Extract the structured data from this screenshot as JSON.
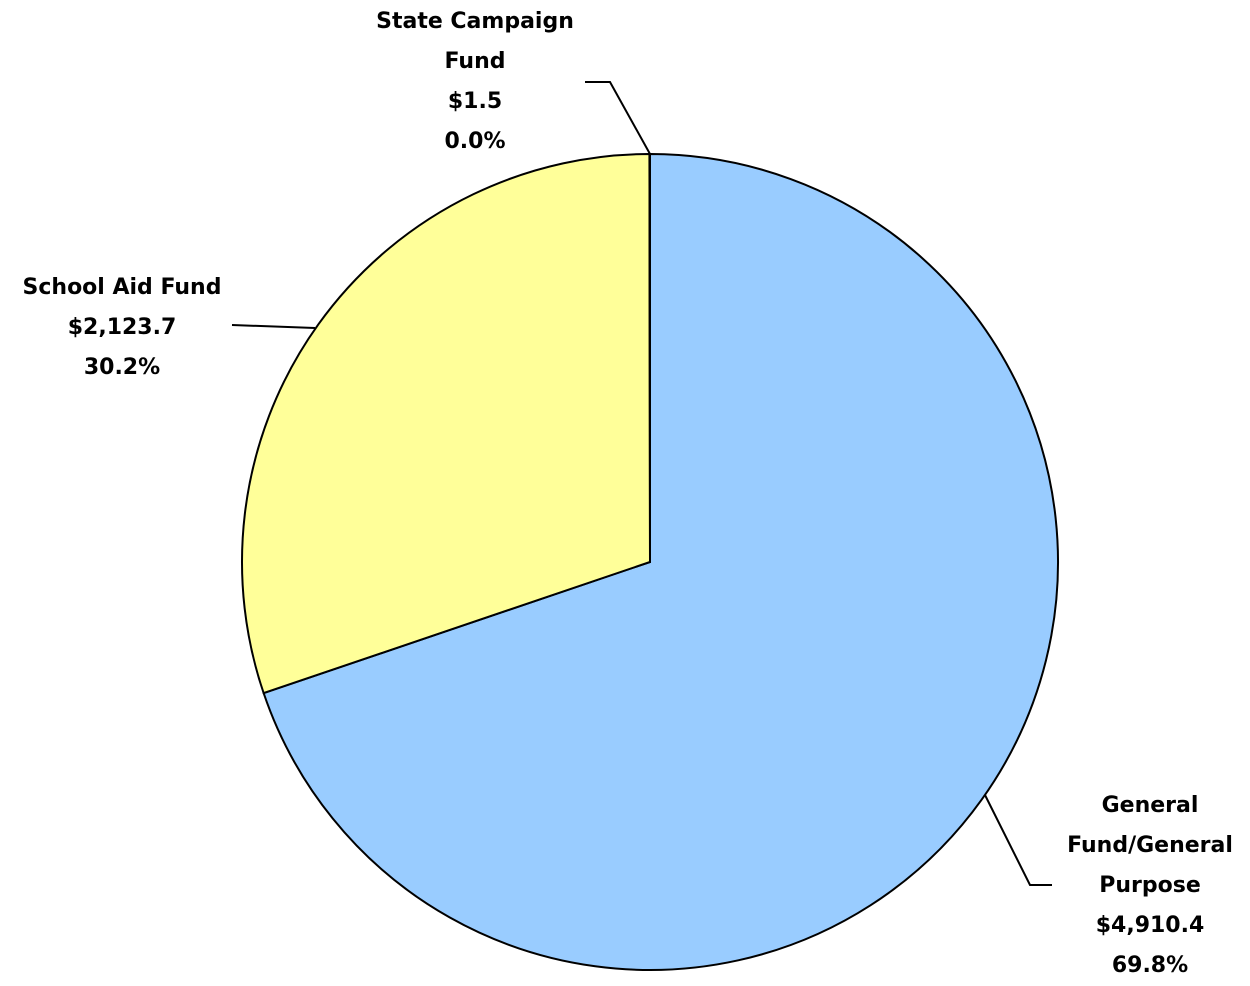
{
  "chart_data": {
    "type": "pie",
    "categories": [
      "General Fund/General Purpose",
      "School Aid Fund",
      "State Campaign Fund"
    ],
    "values": [
      4910.4,
      2123.7,
      1.5
    ],
    "value_labels": [
      "$4,910.4",
      "$2,123.7",
      "$1.5"
    ],
    "percents": [
      69.8,
      30.2,
      0.0
    ],
    "percent_labels": [
      "69.8%",
      "30.2%",
      "0.0%"
    ],
    "colors": [
      "#99ccff",
      "#ffff99",
      "#cc99ff"
    ]
  }
}
